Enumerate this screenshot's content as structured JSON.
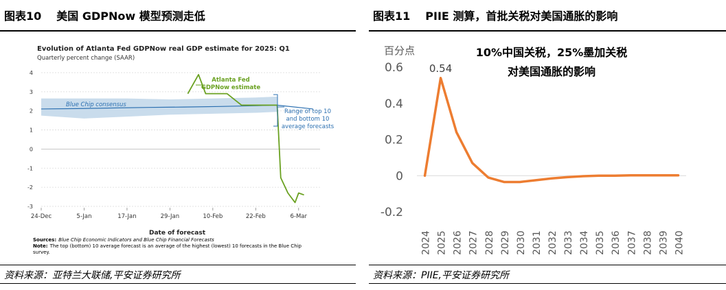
{
  "left": {
    "figure_number": "图表10",
    "figure_title": "美国 GDPNow 模型预测走低",
    "source": "资料来源：亚特兰大联储,平安证券研究所"
  },
  "right": {
    "figure_number": "图表11",
    "figure_title": "PIIE 测算，首批关税对美国通胀的影响",
    "source": "资料来源：PIIE,平安证券研究所"
  },
  "chart_data": [
    {
      "type": "line",
      "title": "Evolution of Atlanta Fed GDPNow real GDP estimate for 2025: Q1",
      "subtitle": "Quarterly percent change (SAAR)",
      "xlabel": "Date of forecast",
      "ylabel": "",
      "ylim": [
        -3,
        4
      ],
      "yticks": [
        "4",
        "3",
        "2",
        "1",
        "0",
        "-1",
        "-2",
        "-3"
      ],
      "xticks": [
        "24-Dec",
        "5-Jan",
        "17-Jan",
        "29-Jan",
        "10-Feb",
        "22-Feb",
        "6-Mar"
      ],
      "xtick_days": [
        0,
        12,
        24,
        36,
        48,
        60,
        72
      ],
      "xlim_days": [
        0,
        78
      ],
      "series": [
        {
          "name": "Atlanta Fed GDPNow estimate",
          "label_lines": [
            "Atlanta Fed",
            "GDPNow estimate"
          ],
          "color": "#6aa121",
          "x": [
            41,
            44,
            46,
            48,
            52,
            56,
            58,
            60,
            62,
            64,
            66,
            67,
            69,
            71,
            72,
            73.5
          ],
          "y": [
            2.9,
            3.9,
            2.9,
            2.9,
            2.9,
            2.3,
            2.3,
            2.3,
            2.3,
            2.3,
            2.3,
            -1.5,
            -2.3,
            -2.8,
            -2.3,
            -2.4
          ]
        },
        {
          "name": "Blue Chip consensus",
          "color": "#2b6fb0",
          "x": [
            0,
            10,
            20,
            30,
            40,
            50,
            60,
            66,
            76
          ],
          "y": [
            2.1,
            2.12,
            2.15,
            2.18,
            2.2,
            2.23,
            2.27,
            2.3,
            2.1
          ]
        }
      ],
      "band": {
        "name": "Range of top 10 and bottom 10 average forecasts",
        "label_lines": [
          "Range of top 10",
          "and bottom 10",
          "average forecasts"
        ],
        "color": "#c9dcec",
        "x": [
          0,
          12,
          24,
          36,
          48,
          60,
          66
        ],
        "upper": [
          2.65,
          2.65,
          2.65,
          2.6,
          2.65,
          2.7,
          2.75
        ],
        "lower": [
          1.75,
          1.6,
          1.7,
          1.8,
          1.85,
          1.9,
          1.95
        ]
      },
      "notes": {
        "sources_label": "Sources:",
        "sources_text": "Blue Chip Economic Indicators and Blue Chip Financial Forecasts",
        "note_label": "Note:",
        "note_line1": "The top (bottom) 10 average forecast is an average of the highest (lowest) 10 forecasts in the Blue Chip",
        "note_line2": "survey."
      }
    },
    {
      "type": "line",
      "title": "10%中国关税，25%墨加关税",
      "subtitle": "对美国通胀的影响",
      "ylabel": "百分点",
      "xlabel": "",
      "ylim": [
        -0.2,
        0.6
      ],
      "yticks": [
        0.6,
        0.4,
        0.2,
        0,
        -0.2
      ],
      "ytick_labels": [
        "0.6",
        "0.4",
        "0.2",
        "0",
        "-0.2"
      ],
      "categories": [
        "2024",
        "2025",
        "2026",
        "2027",
        "2028",
        "2029",
        "2030",
        "2031",
        "2032",
        "2033",
        "2034",
        "2035",
        "2036",
        "2037",
        "2038",
        "2039",
        "2040"
      ],
      "series": [
        {
          "name": "",
          "color": "#ed7d31",
          "values": [
            0,
            0.54,
            0.24,
            0.07,
            -0.01,
            -0.035,
            -0.035,
            -0.025,
            -0.015,
            -0.008,
            -0.003,
            0.0,
            0.0,
            0.002,
            0.002,
            0.002,
            0.002
          ]
        }
      ],
      "annotations": [
        {
          "category": "2025",
          "text": "0.54"
        }
      ]
    }
  ]
}
